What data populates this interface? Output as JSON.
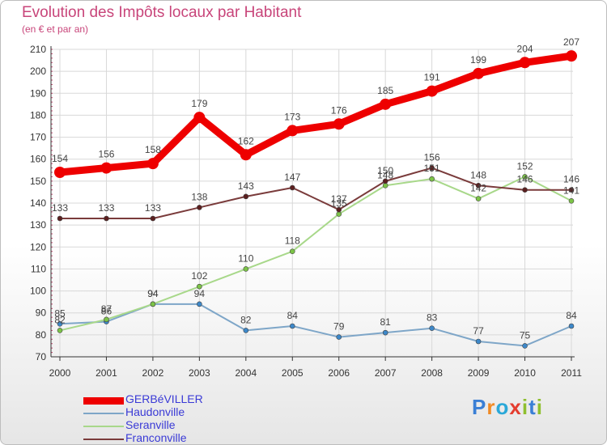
{
  "header": {
    "title": "Evolution des Impôts locaux par Habitant",
    "subtitle": "(en € et par an)"
  },
  "logo": {
    "letters": [
      "P",
      "r",
      "o",
      "x",
      "i",
      "t",
      "i"
    ],
    "colors": [
      "#3a7fd5",
      "#f08a24",
      "#2aa8d8",
      "#e43d2f",
      "#8fbf2f",
      "#3a7fd5",
      "#8fbf2f"
    ]
  },
  "chart_data": {
    "type": "line",
    "title": "Evolution des Impôts locaux par Habitant",
    "subtitle": "(en € et par an)",
    "xlabel": "",
    "ylabel": "",
    "ylim": [
      70,
      210
    ],
    "yticks": [
      70,
      80,
      90,
      100,
      110,
      120,
      130,
      140,
      150,
      160,
      170,
      180,
      190,
      200,
      210
    ],
    "categories": [
      "2000",
      "2001",
      "2002",
      "2003",
      "2004",
      "2005",
      "2006",
      "2007",
      "2008",
      "2009",
      "2010",
      "2011"
    ],
    "grid": true,
    "legend_position": "bottom-left",
    "series": [
      {
        "name": "GERBéVILLER",
        "color": "#ee0000",
        "marker_color": "#ee0000",
        "values": [
          154,
          156,
          158,
          179,
          162,
          173,
          176,
          185,
          191,
          199,
          204,
          207
        ],
        "labels": [
          "154",
          "156",
          "158",
          "179",
          "162",
          "173",
          "176",
          "185",
          "191",
          "199",
          "204",
          "207"
        ],
        "thick": true
      },
      {
        "name": "Haudonville",
        "color": "#7ea6c8",
        "marker_color": "#3d88c9",
        "values": [
          85,
          86,
          94,
          94,
          82,
          84,
          79,
          81,
          83,
          77,
          75,
          84
        ],
        "labels": [
          "85",
          "86",
          "94",
          "94",
          "82",
          "84",
          "79",
          "81",
          "83",
          "77",
          "75",
          "84"
        ],
        "thick": false
      },
      {
        "name": "Seranville",
        "color": "#a8d88a",
        "marker_color": "#7cc447",
        "values": [
          82,
          87,
          94,
          102,
          110,
          118,
          135,
          148,
          151,
          142,
          152,
          141
        ],
        "labels": [
          "82",
          "87",
          "94",
          "102",
          "110",
          "118",
          "135",
          "148",
          "151",
          "142",
          "152",
          "141"
        ],
        "thick": false
      },
      {
        "name": "Franconville",
        "color": "#7a3b3b",
        "marker_color": "#5b1f1f",
        "values": [
          133,
          133,
          133,
          138,
          143,
          147,
          137,
          150,
          156,
          148,
          146,
          146
        ],
        "labels": [
          "133",
          "133",
          "133",
          "138",
          "143",
          "147",
          "137",
          "150",
          "156",
          "148",
          "146",
          "146"
        ],
        "thick": false
      }
    ]
  }
}
